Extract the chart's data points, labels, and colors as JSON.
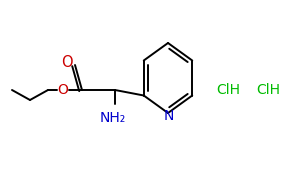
{
  "background_color": "#ffffff",
  "bond_color": "#000000",
  "oxygen_color": "#cc0000",
  "nitrogen_color": "#0000cc",
  "hcl_color": "#00bb00",
  "line_width": 1.4,
  "figsize": [
    3.0,
    1.86
  ],
  "dpi": 100,
  "NH2_text": "NH₂",
  "N_text": "N",
  "O_text": "O",
  "ClH_text": "ClH"
}
